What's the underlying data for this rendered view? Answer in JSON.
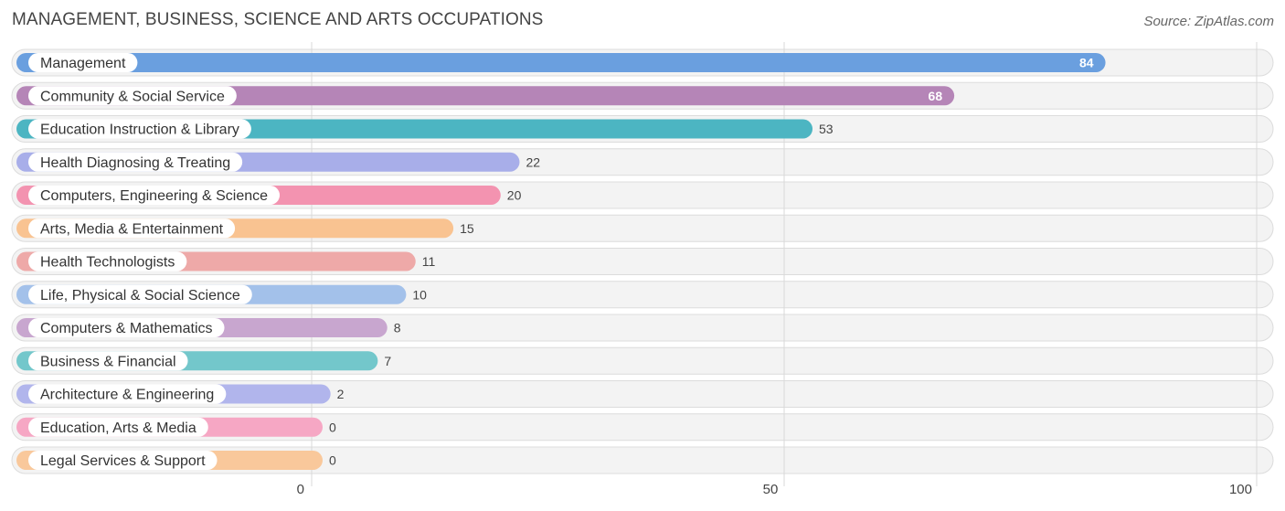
{
  "header": {
    "title": "MANAGEMENT, BUSINESS, SCIENCE AND ARTS OCCUPATIONS",
    "source": "Source: ZipAtlas.com"
  },
  "chart_data": {
    "type": "bar",
    "orientation": "horizontal",
    "title": "MANAGEMENT, BUSINESS, SCIENCE AND ARTS OCCUPATIONS",
    "xlabel": "",
    "ylabel": "",
    "xlim": [
      0,
      100
    ],
    "xticks": [
      "0",
      "50",
      "100"
    ],
    "grid": true,
    "categories": [
      "Management",
      "Community & Social Service",
      "Education Instruction & Library",
      "Health Diagnosing & Treating",
      "Computers, Engineering & Science",
      "Arts, Media & Entertainment",
      "Health Technologists",
      "Life, Physical & Social Science",
      "Computers & Mathematics",
      "Business & Financial",
      "Architecture & Engineering",
      "Education, Arts & Media",
      "Legal Services & Support"
    ],
    "values": [
      84,
      68,
      53,
      22,
      20,
      15,
      11,
      10,
      8,
      7,
      2,
      0,
      0
    ],
    "value_labels": [
      "84",
      "68",
      "53",
      "22",
      "20",
      "15",
      "11",
      "10",
      "8",
      "7",
      "2",
      "0",
      "0"
    ],
    "colors": [
      "#6a9fdf",
      "#b585b7",
      "#4cb5c2",
      "#a8aee9",
      "#f393b0",
      "#f9c391",
      "#eea9a8",
      "#a3c1ea",
      "#c8a6cf",
      "#73c7cb",
      "#b1b5ec",
      "#f6a7c4",
      "#f9c89b"
    ]
  }
}
